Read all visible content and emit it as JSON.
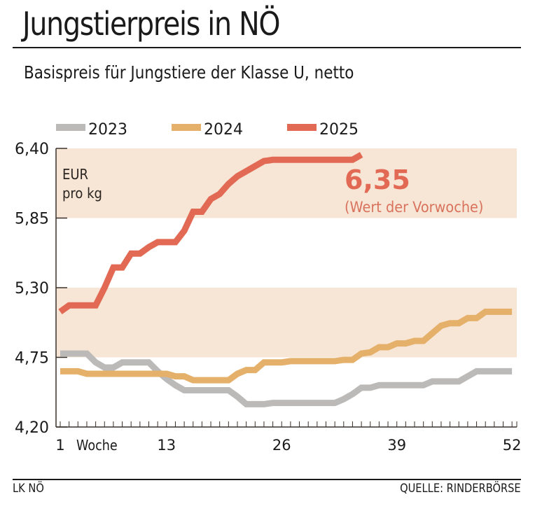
{
  "header": {
    "title": "Jungstierpreis in NÖ",
    "subtitle": "Basispreis für Jungstiere der Klasse U, netto"
  },
  "footer": {
    "left": "LK NÖ",
    "right": "QUELLE: RINDERBÖRSE"
  },
  "chart_data": {
    "type": "line",
    "title": "Jungstierpreis in NÖ",
    "subtitle": "Basispreis für Jungstiere der Klasse U, netto",
    "xlabel": "Woche",
    "ylabel": "EUR pro kg",
    "ylabel_lines": [
      "EUR",
      "pro kg"
    ],
    "xlim": [
      1,
      52
    ],
    "ylim": [
      4.2,
      6.4
    ],
    "x_ticks": [
      1,
      13,
      26,
      39,
      52
    ],
    "x_tick_labels": [
      "1",
      "13",
      "26",
      "39",
      "52"
    ],
    "y_ticks": [
      4.2,
      4.75,
      5.3,
      5.85,
      6.4
    ],
    "y_tick_labels": [
      "4,20",
      "4,75",
      "5,30",
      "5,85",
      "6,40"
    ],
    "bands": [
      [
        4.75,
        5.3
      ],
      [
        5.85,
        6.4
      ]
    ],
    "band_color": "#f7e6d6",
    "legend": {
      "position": "top",
      "entries": [
        "2023",
        "2024",
        "2025"
      ]
    },
    "annotation": {
      "value": "6,35",
      "note": "(Wert der Vorwoche)",
      "color": "#e26a55"
    },
    "series": [
      {
        "name": "2023",
        "color": "#bcbab8",
        "x": [
          1,
          2,
          3,
          4,
          5,
          6,
          7,
          8,
          9,
          10,
          11,
          12,
          13,
          14,
          15,
          16,
          17,
          18,
          19,
          20,
          21,
          22,
          23,
          24,
          25,
          26,
          27,
          28,
          29,
          30,
          31,
          32,
          33,
          34,
          35,
          36,
          37,
          38,
          39,
          40,
          41,
          42,
          43,
          44,
          45,
          46,
          47,
          48,
          49,
          50,
          51,
          52
        ],
        "values": [
          4.78,
          4.78,
          4.78,
          4.78,
          4.71,
          4.67,
          4.67,
          4.71,
          4.71,
          4.71,
          4.71,
          4.64,
          4.58,
          4.53,
          4.49,
          4.49,
          4.49,
          4.49,
          4.49,
          4.49,
          4.44,
          4.38,
          4.38,
          4.38,
          4.39,
          4.39,
          4.39,
          4.39,
          4.39,
          4.39,
          4.39,
          4.39,
          4.42,
          4.46,
          4.51,
          4.51,
          4.53,
          4.53,
          4.53,
          4.53,
          4.53,
          4.53,
          4.56,
          4.56,
          4.56,
          4.56,
          4.6,
          4.64,
          4.64,
          4.64,
          4.64,
          4.64
        ]
      },
      {
        "name": "2024",
        "color": "#e5b06a",
        "x": [
          1,
          2,
          3,
          4,
          5,
          6,
          7,
          8,
          9,
          10,
          11,
          12,
          13,
          14,
          15,
          16,
          17,
          18,
          19,
          20,
          21,
          22,
          23,
          24,
          25,
          26,
          27,
          28,
          29,
          30,
          31,
          32,
          33,
          34,
          35,
          36,
          37,
          38,
          39,
          40,
          41,
          42,
          43,
          44,
          45,
          46,
          47,
          48,
          49,
          50,
          51,
          52
        ],
        "values": [
          4.64,
          4.64,
          4.64,
          4.62,
          4.62,
          4.62,
          4.62,
          4.62,
          4.62,
          4.62,
          4.62,
          4.62,
          4.62,
          4.6,
          4.6,
          4.57,
          4.57,
          4.57,
          4.57,
          4.57,
          4.62,
          4.65,
          4.65,
          4.71,
          4.71,
          4.71,
          4.72,
          4.72,
          4.72,
          4.72,
          4.72,
          4.72,
          4.73,
          4.73,
          4.78,
          4.79,
          4.83,
          4.83,
          4.86,
          4.86,
          4.88,
          4.88,
          4.94,
          5.0,
          5.02,
          5.02,
          5.06,
          5.06,
          5.11,
          5.11,
          5.11,
          5.11
        ]
      },
      {
        "name": "2025",
        "color": "#e26a55",
        "x": [
          1,
          2,
          3,
          4,
          5,
          6,
          7,
          8,
          9,
          10,
          11,
          12,
          13,
          14,
          15,
          16,
          17,
          18,
          19,
          20,
          21,
          22,
          23,
          24,
          25,
          26,
          27,
          28,
          29,
          30,
          31,
          32,
          33,
          34,
          35
        ],
        "values": [
          5.11,
          5.16,
          5.16,
          5.16,
          5.16,
          5.3,
          5.46,
          5.46,
          5.57,
          5.57,
          5.62,
          5.66,
          5.66,
          5.66,
          5.75,
          5.9,
          5.9,
          6.0,
          6.04,
          6.12,
          6.18,
          6.22,
          6.26,
          6.3,
          6.31,
          6.31,
          6.31,
          6.31,
          6.31,
          6.31,
          6.31,
          6.31,
          6.31,
          6.31,
          6.35
        ]
      }
    ]
  }
}
